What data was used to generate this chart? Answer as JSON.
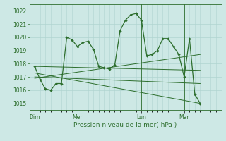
{
  "background_color": "#cde8e5",
  "grid_color": "#b0d4d0",
  "line_color": "#2d6e2d",
  "title": "Pression niveau de la mer( hPa )",
  "ylim": [
    1014.5,
    1022.5
  ],
  "yticks": [
    1015,
    1016,
    1017,
    1018,
    1019,
    1020,
    1021,
    1022
  ],
  "day_labels": [
    "Dim",
    "Mer",
    "Lun",
    "Mar"
  ],
  "day_positions": [
    0,
    8,
    20,
    28
  ],
  "xlim": [
    -1,
    35
  ],
  "series1": [
    1017.8,
    1016.8,
    1016.1,
    1016.0,
    1016.5,
    1016.5,
    1020.0,
    1019.8,
    1019.3,
    1019.6,
    1019.7,
    1019.1,
    1017.8,
    1017.7,
    1017.6,
    1017.9,
    1020.5,
    1021.3,
    1021.7,
    1021.8,
    1021.3,
    1018.6,
    1018.7,
    1019.0,
    1019.9,
    1019.9,
    1019.3,
    1018.7,
    1017.0,
    1019.9,
    1015.7,
    1015.0
  ],
  "series2_x": [
    0,
    31
  ],
  "series2_y": [
    1017.8,
    1017.5
  ],
  "series3_x": [
    0,
    31
  ],
  "series3_y": [
    1016.9,
    1018.7
  ],
  "series4_x": [
    0,
    31
  ],
  "series4_y": [
    1017.0,
    1016.5
  ],
  "series5_x": [
    0,
    31
  ],
  "series5_y": [
    1017.3,
    1015.0
  ],
  "n_points": 32
}
